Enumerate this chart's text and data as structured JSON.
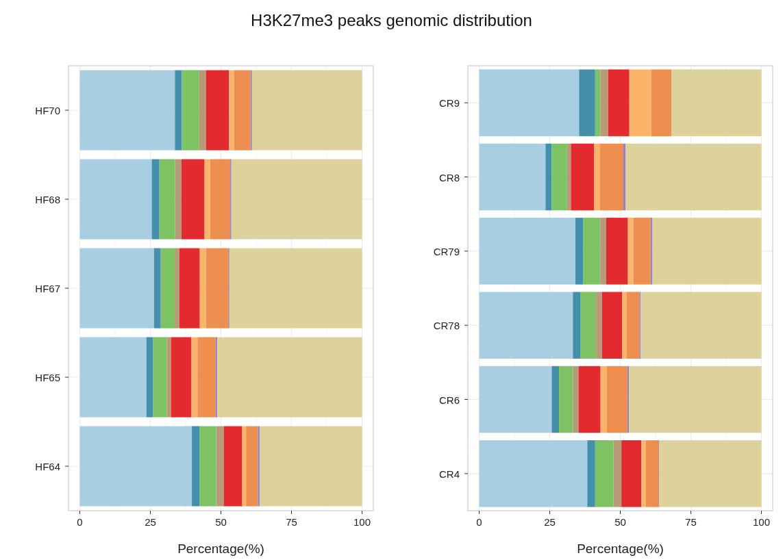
{
  "chart_data": [
    {
      "type": "bar",
      "title": "H3K27me3 peaks genomic distribution",
      "orientation": "horizontal",
      "stacked": true,
      "xlabel": "Percentage(%)",
      "categories": [
        "HF70",
        "HF68",
        "HF67",
        "HF65",
        "HF64"
      ],
      "xlim": [
        -4,
        104
      ],
      "xticks": [
        0,
        25,
        50,
        75,
        100
      ],
      "grid": true,
      "series": [
        {
          "color": "#a9cee2",
          "values": [
            33.7,
            25.5,
            26.3,
            23.6,
            39.7
          ]
        },
        {
          "color": "#4490ab",
          "values": [
            2.4,
            2.7,
            2.4,
            2.4,
            2.8
          ]
        },
        {
          "color": "#7dc263",
          "values": [
            6.2,
            5.5,
            4.9,
            4.8,
            5.8
          ]
        },
        {
          "color": "#b99a76",
          "values": [
            2.4,
            2.3,
            1.7,
            1.6,
            2.7
          ]
        },
        {
          "color": "#e22a2f",
          "values": [
            8.2,
            8.2,
            7.2,
            7.1,
            6.5
          ]
        },
        {
          "color": "#fbb469",
          "values": [
            1.8,
            2.0,
            2.2,
            2.2,
            1.4
          ]
        },
        {
          "color": "#ec8f4f",
          "values": [
            5.8,
            7.1,
            7.9,
            6.4,
            4.2
          ]
        },
        {
          "color": "#9a83b8",
          "values": [
            0.5,
            0.4,
            0.4,
            0.6,
            0.6
          ]
        },
        {
          "color": "#ddd29c",
          "values": [
            39.0,
            46.3,
            47.0,
            51.3,
            36.3
          ]
        }
      ]
    },
    {
      "type": "bar",
      "orientation": "horizontal",
      "stacked": true,
      "xlabel": "Percentage(%)",
      "categories": [
        "CR9",
        "CR8",
        "CR79",
        "CR78",
        "CR6",
        "CR4"
      ],
      "xlim": [
        -4,
        104
      ],
      "xticks": [
        0,
        25,
        50,
        75,
        100
      ],
      "grid": true,
      "series": [
        {
          "color": "#a9cee2",
          "values": [
            35.4,
            23.5,
            34.1,
            33.2,
            25.7,
            38.3
          ]
        },
        {
          "color": "#4490ab",
          "values": [
            5.7,
            2.2,
            2.8,
            2.6,
            2.6,
            2.8
          ]
        },
        {
          "color": "#7dc263",
          "values": [
            1.9,
            5.3,
            6.0,
            5.6,
            5.0,
            6.5
          ]
        },
        {
          "color": "#b99a76",
          "values": [
            2.7,
            1.5,
            2.1,
            2.1,
            1.9,
            2.8
          ]
        },
        {
          "color": "#e22a2f",
          "values": [
            7.5,
            8.2,
            7.7,
            7.2,
            7.8,
            7.1
          ]
        },
        {
          "color": "#fbb469",
          "values": [
            7.8,
            2.0,
            1.9,
            1.6,
            2.2,
            1.6
          ]
        },
        {
          "color": "#ec8f4f",
          "values": [
            7.2,
            8.4,
            6.1,
            4.6,
            7.3,
            4.4
          ]
        },
        {
          "color": "#9a83b8",
          "values": [
            null,
            0.8,
            0.7,
            0.3,
            0.6,
            0.3
          ]
        },
        {
          "color": "#ddd29c",
          "values": [
            31.8,
            48.1,
            38.6,
            42.8,
            46.9,
            36.2
          ]
        }
      ]
    }
  ]
}
